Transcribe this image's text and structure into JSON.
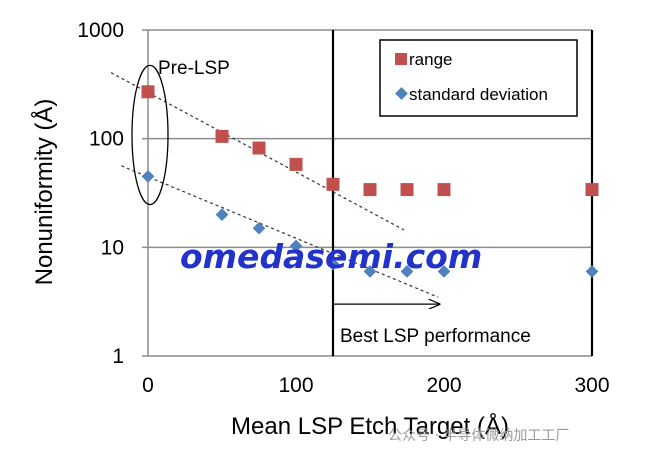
{
  "chart_data": {
    "type": "scatter",
    "xlabel": "Mean LSP Etch Target (Å)",
    "ylabel": "Nonuniformity (Å)",
    "xlim": [
      0,
      300
    ],
    "ylim": [
      1,
      1000
    ],
    "y_scale": "log",
    "x_ticks": [
      "0",
      "100",
      "200",
      "300"
    ],
    "y_ticks": [
      "1",
      "10",
      "100",
      "1000"
    ],
    "grid": "horizontal",
    "legend_position": "top-right",
    "series": [
      {
        "name": "range",
        "marker": "square",
        "color": "#c0504d",
        "x": [
          0,
          50,
          75,
          100,
          125,
          150,
          175,
          200,
          300
        ],
        "y": [
          270,
          105,
          82,
          58,
          38,
          34,
          34,
          34,
          34
        ]
      },
      {
        "name": "standard deviation",
        "marker": "diamond",
        "color": "#4f81bd",
        "x": [
          0,
          50,
          75,
          100,
          125,
          150,
          175,
          200,
          300
        ],
        "y": [
          45,
          20,
          15,
          10.3,
          7,
          6,
          6,
          6,
          6
        ]
      }
    ],
    "annotations": {
      "pre_lsp": "Pre-LSP",
      "best_lsp": "Best LSP performance",
      "vertical_line_x": 125
    }
  },
  "watermark": {
    "main": "omedasemi.com",
    "corner": "公众号 · 半导体微纳加工工厂"
  }
}
